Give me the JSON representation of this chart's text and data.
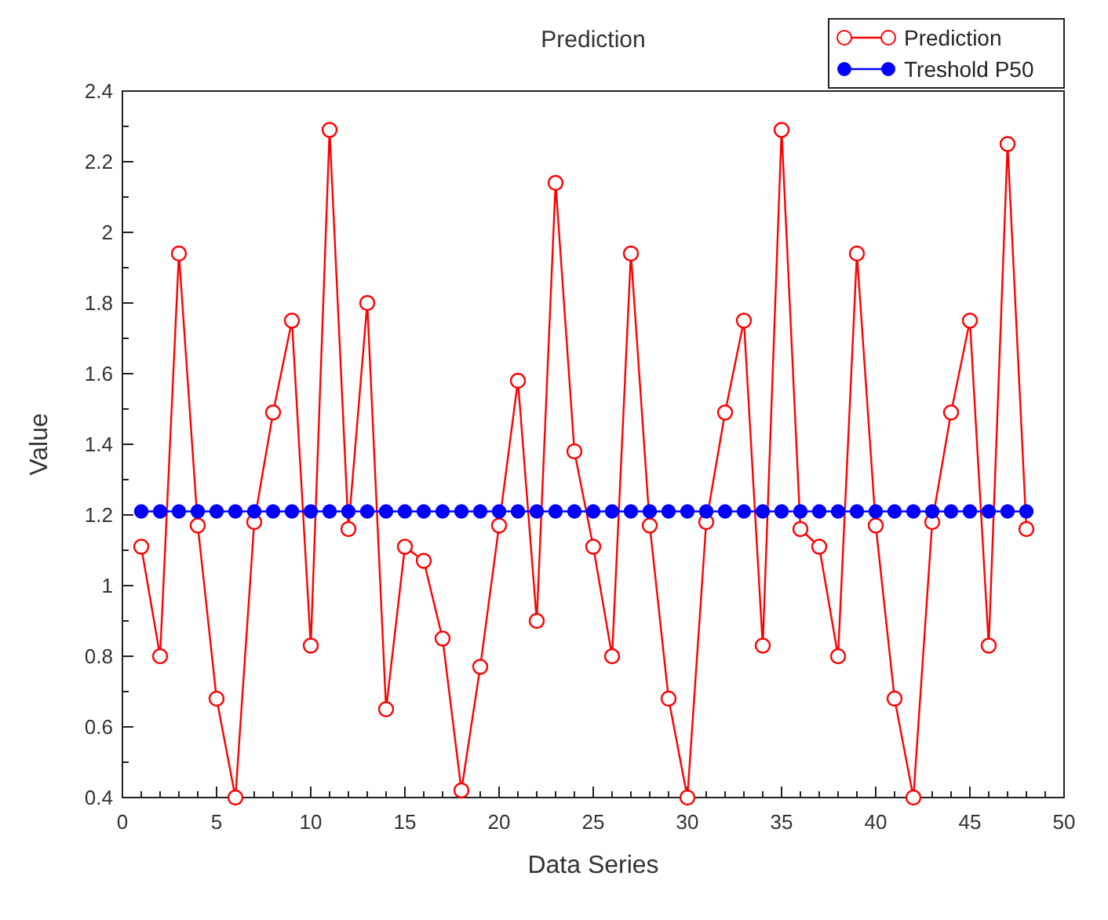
{
  "chart_data": {
    "type": "line",
    "title": "Prediction",
    "xlabel": "Data Series",
    "ylabel": "Value",
    "x": [
      1,
      2,
      3,
      4,
      5,
      6,
      7,
      8,
      9,
      10,
      11,
      12,
      13,
      14,
      15,
      16,
      17,
      18,
      19,
      20,
      21,
      22,
      23,
      24,
      25,
      26,
      27,
      28,
      29,
      30,
      31,
      32,
      33,
      34,
      35,
      36,
      37,
      38,
      39,
      40,
      41,
      42,
      43,
      44,
      45,
      46,
      47,
      48
    ],
    "series": [
      {
        "name": "Prediction",
        "color": "#ff0000",
        "marker": "circle",
        "values": [
          1.11,
          0.8,
          1.94,
          1.17,
          0.68,
          0.4,
          1.18,
          1.49,
          1.75,
          0.83,
          2.29,
          1.16,
          1.8,
          0.65,
          1.11,
          1.07,
          0.85,
          0.42,
          0.77,
          1.17,
          1.58,
          0.9,
          2.14,
          1.38,
          1.11,
          0.8,
          1.94,
          1.17,
          0.68,
          0.4,
          1.18,
          1.49,
          1.75,
          0.83,
          2.29,
          1.16,
          1.11,
          0.8,
          1.94,
          1.17,
          0.68,
          0.4,
          1.18,
          1.49,
          1.75,
          0.83,
          2.25,
          1.16
        ]
      },
      {
        "name": "Treshold P50",
        "color": "#0000ff",
        "marker": "circle",
        "values": [
          1.21,
          1.21,
          1.21,
          1.21,
          1.21,
          1.21,
          1.21,
          1.21,
          1.21,
          1.21,
          1.21,
          1.21,
          1.21,
          1.21,
          1.21,
          1.21,
          1.21,
          1.21,
          1.21,
          1.21,
          1.21,
          1.21,
          1.21,
          1.21,
          1.21,
          1.21,
          1.21,
          1.21,
          1.21,
          1.21,
          1.21,
          1.21,
          1.21,
          1.21,
          1.21,
          1.21,
          1.21,
          1.21,
          1.21,
          1.21,
          1.21,
          1.21,
          1.21,
          1.21,
          1.21,
          1.21,
          1.21,
          1.21
        ]
      }
    ],
    "xlim": [
      0,
      50
    ],
    "xticks": [
      0,
      5,
      10,
      15,
      20,
      25,
      30,
      35,
      40,
      45,
      50
    ],
    "ylim": [
      0.4,
      2.4
    ],
    "yticks": [
      0.4,
      0.6,
      0.8,
      1,
      1.2,
      1.4,
      1.6,
      1.8,
      2,
      2.2,
      2.4
    ],
    "grid": false,
    "legend": "top right",
    "line_style": "solid"
  }
}
